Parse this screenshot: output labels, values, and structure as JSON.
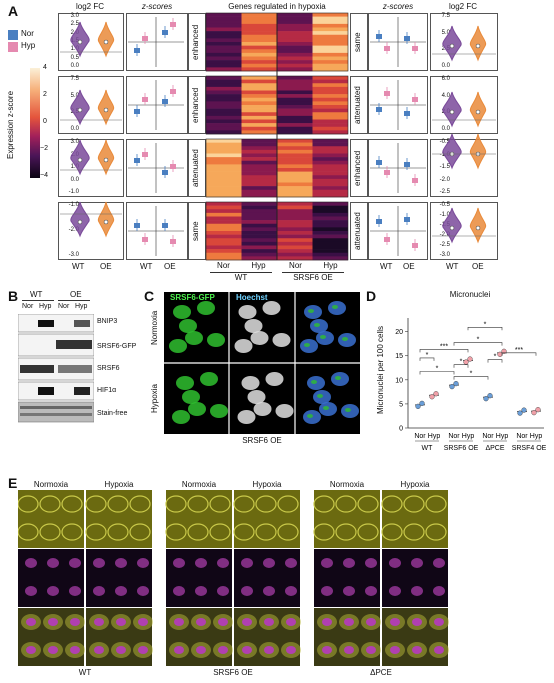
{
  "panels": {
    "a": "A",
    "b": "B",
    "c": "C",
    "d": "D",
    "e": "E"
  },
  "panel_a": {
    "legend": {
      "nor": "Nor",
      "hyp": "Hyp",
      "nor_color": "#4a7fc1",
      "hyp_color": "#e58ab0"
    },
    "colorbar_title": "Expression z-score",
    "colorbar_ticks": [
      "4",
      "2",
      "0",
      "−2",
      "−4"
    ],
    "left_log2fc_title": "log2 FC",
    "left_zscores_title": "z-scores",
    "heatmap_title": "Genes regulated in hypoxia",
    "right_zscores_title": "z-scores",
    "right_log2fc_title": "log2 FC",
    "left_row_labels": [
      "enhanced",
      "enhanced",
      "attenuated",
      "same"
    ],
    "right_row_labels": [
      "same",
      "attenuated",
      "enhanced",
      "attenuated"
    ],
    "left_axis_rows": [
      [
        "3.0",
        "2.5",
        "2.0",
        "1.5",
        "1.0",
        "0.5",
        "0.0"
      ],
      [
        "7.5",
        "5.0",
        "2.5",
        "0.0"
      ],
      [
        "3.0",
        "2.0",
        "1.0",
        "0.0",
        "-1.0"
      ],
      [
        "-1.0",
        "-2.0",
        "-3.0"
      ]
    ],
    "right_axis_rows": [
      [
        "7.5",
        "5.0",
        "2.5",
        "0.0"
      ],
      [
        "6.0",
        "4.0",
        "2.0",
        "0.0"
      ],
      [
        "-0.5",
        "-1.0",
        "-1.5",
        "-2.0",
        "-2.5"
      ],
      [
        "-0.5",
        "-1.0",
        "-1.5",
        "-2.0",
        "-2.5",
        "-3.0"
      ]
    ],
    "zscore_ticks": [
      "1",
      "0",
      "-1",
      "-2"
    ],
    "x_labels": {
      "wt": "WT",
      "oe": "OE"
    },
    "heatmap_cols": [
      "Nor",
      "Hyp",
      "Nor",
      "Hyp"
    ],
    "heatmap_groups": [
      "WT",
      "SRSF6 OE"
    ]
  },
  "panel_b": {
    "groups": [
      "WT",
      "OE"
    ],
    "cols": [
      "Nor",
      "Hyp",
      "Nor",
      "Hyp"
    ],
    "rows": [
      "BNIP3",
      "SRSF6-GFP",
      "SRSF6",
      "HIF1α",
      "Stain-free"
    ]
  },
  "panel_c": {
    "col_labels": [
      "SRSF6-GFP",
      "Hoechst"
    ],
    "row_labels": [
      "Normoxia",
      "Hypoxia"
    ],
    "caption": "SRSF6 OE"
  },
  "panel_d": {
    "title": "Micronuclei",
    "ylabel": "Micronuclei per 100 cells",
    "y_ticks": [
      "20",
      "15",
      "10",
      "5",
      "0"
    ],
    "x_conditions": [
      "Nor",
      "Hyp",
      "Nor",
      "Hyp",
      "Nor",
      "Hyp",
      "Nor",
      "Hyp"
    ],
    "groups": [
      "WT",
      "SRSF6 OE",
      "ΔPCE",
      "SRSF4 OE"
    ],
    "sig": [
      "*",
      "***",
      "*",
      "*",
      "*",
      "*",
      "*",
      "*",
      "***"
    ]
  },
  "panel_e": {
    "conditions": [
      "Normoxia",
      "Hypoxia",
      "Normoxia",
      "Hypoxia",
      "Normoxia",
      "Hypoxia"
    ],
    "groups": [
      "WT",
      "SRSF6 OE",
      "ΔPCE"
    ]
  },
  "chart_data": {
    "type": "scatter",
    "title": "Micronuclei",
    "ylabel": "Micronuclei per 100 cells",
    "ylim": [
      0,
      22
    ],
    "categories": [
      "WT Nor",
      "WT Hyp",
      "SRSF6 OE Nor",
      "SRSF6 OE Hyp",
      "ΔPCE Nor",
      "ΔPCE Hyp",
      "SRSF4 OE Nor",
      "SRSF4 OE Hyp"
    ],
    "series": [
      {
        "values": [
          4.8,
          6.8,
          8.9,
          14.0,
          6.4,
          15.6,
          3.4,
          3.5
        ]
      }
    ]
  }
}
